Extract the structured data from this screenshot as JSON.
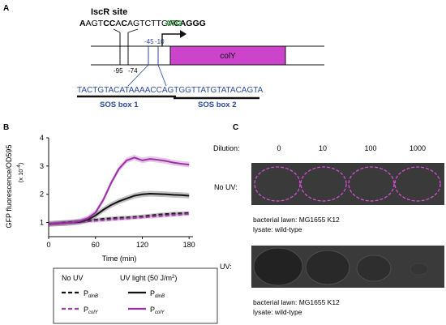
{
  "panels": {
    "a": "A",
    "b": "B",
    "c": "C"
  },
  "panel_a": {
    "iscr_site_label": "IscR site",
    "iscr_sequence": [
      {
        "t": "A",
        "bold": true
      },
      {
        "t": "AGT",
        "bold": false
      },
      {
        "t": "CC",
        "bold": true
      },
      {
        "t": "A",
        "bold": false
      },
      {
        "t": "C",
        "bold": true
      },
      {
        "t": "AGTCTTGA",
        "bold": false
      },
      {
        "t": "CAG",
        "bold": true
      },
      {
        "t": "GG",
        "bold": true
      }
    ],
    "start_codon": "ATG",
    "gene_label": "colY",
    "positions": {
      "p95": "-95",
      "p74": "-74",
      "p45": "-45",
      "p10": "-10"
    },
    "sos_sequence_part1": "TACTGTACATAAAACCAG",
    "sos_sequence_part2": "TGGTTATGTATACAGTA",
    "sos_box1": "SOS box 1",
    "sos_box2": "SOS box 2",
    "colors": {
      "gene_fill": "#cc44cc",
      "atg": "#2a9d3a",
      "sos": "#2b4aa0"
    }
  },
  "chart_data": {
    "type": "line",
    "ylabel": "GFP fluorescence/OD595",
    "ylabel_scale": "(x 10",
    "ylabel_scale_exp": "-4",
    "ylabel_scale_close": ")",
    "xlabel": "Time (min)",
    "xticks": [
      "0",
      "60",
      "120",
      "180"
    ],
    "yticks": [
      "1",
      "2",
      "3",
      "4"
    ],
    "xlim": [
      0,
      185
    ],
    "ylim": [
      0.5,
      4.0
    ],
    "series": [
      {
        "id": "dinB_noUV",
        "color": "#111111",
        "dash": "5,3",
        "band": 0.06,
        "x": [
          0,
          10,
          20,
          30,
          40,
          50,
          60,
          70,
          80,
          90,
          100,
          110,
          120,
          130,
          140,
          150,
          160,
          170,
          180
        ],
        "y": [
          0.95,
          0.97,
          1.0,
          1.02,
          1.04,
          1.07,
          1.1,
          1.13,
          1.15,
          1.17,
          1.18,
          1.2,
          1.22,
          1.25,
          1.28,
          1.3,
          1.32,
          1.33,
          1.34
        ]
      },
      {
        "id": "colY_noUV",
        "color": "#9b3fa6",
        "dash": "5,3",
        "band": 0.06,
        "x": [
          0,
          10,
          20,
          30,
          40,
          50,
          60,
          70,
          80,
          90,
          100,
          110,
          120,
          130,
          140,
          150,
          160,
          170,
          180
        ],
        "y": [
          0.95,
          0.96,
          0.98,
          1.0,
          1.02,
          1.04,
          1.06,
          1.08,
          1.1,
          1.12,
          1.14,
          1.16,
          1.18,
          1.2,
          1.22,
          1.24,
          1.26,
          1.28,
          1.3
        ]
      },
      {
        "id": "dinB_UV",
        "color": "#111111",
        "dash": "",
        "band": 0.1,
        "x": [
          0,
          10,
          20,
          30,
          40,
          50,
          60,
          70,
          80,
          90,
          100,
          110,
          120,
          130,
          140,
          150,
          160,
          170,
          180
        ],
        "y": [
          0.95,
          0.97,
          0.98,
          1.0,
          1.02,
          1.1,
          1.25,
          1.45,
          1.62,
          1.75,
          1.85,
          1.95,
          2.0,
          2.02,
          2.01,
          2.0,
          1.98,
          1.97,
          1.95
        ]
      },
      {
        "id": "colY_UV",
        "color": "#9b2fa6",
        "dash": "",
        "band": 0.1,
        "x": [
          0,
          10,
          20,
          30,
          40,
          50,
          60,
          70,
          80,
          90,
          100,
          110,
          120,
          130,
          140,
          150,
          160,
          170,
          180
        ],
        "y": [
          0.95,
          0.97,
          0.98,
          1.0,
          1.05,
          1.15,
          1.35,
          1.8,
          2.4,
          2.9,
          3.2,
          3.3,
          3.2,
          3.25,
          3.22,
          3.18,
          3.12,
          3.08,
          3.05
        ]
      }
    ]
  },
  "legend": {
    "header_no_uv": "No UV",
    "header_uv": "UV light (50 J/m",
    "header_uv_sup": "2",
    "header_uv_close": ")",
    "p": "P",
    "sub_dinb": "dinB",
    "sub_coly": "colY"
  },
  "panel_c": {
    "dilution_label": "Dilution:",
    "dilutions": [
      "0",
      "10",
      "100",
      "1000"
    ],
    "no_uv_label": "No UV:",
    "uv_label": "UV:",
    "caption1_line1": "bacterial lawn: MG1655 K12",
    "caption1_line2": "lysate: wild-type",
    "caption2_line1": "bacterial lawn: MG1655 K12",
    "caption2_line2": "lysate: wild-type",
    "colors": {
      "plate": "#3a3a3a",
      "circle": "#e04fe0"
    }
  }
}
